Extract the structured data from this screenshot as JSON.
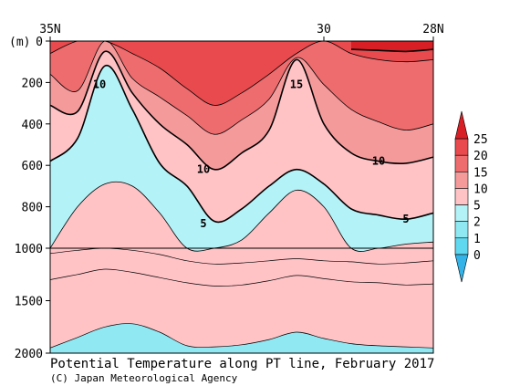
{
  "chart_data": {
    "type": "heatmap",
    "title": "Potential Temperature along PT line, February 2017",
    "credit": "(C) Japan Meteorological Agency",
    "y_unit_label": "(m)",
    "x_tick_labels": [
      "35N",
      "30",
      "28N"
    ],
    "x_range_lat": [
      35,
      28
    ],
    "x_tick_lats": [
      35,
      30,
      28
    ],
    "y_upper_ticks": [
      "0",
      "200",
      "400",
      "600",
      "800",
      "1000"
    ],
    "y_lower_ticks": [
      "1500",
      "2000"
    ],
    "y_upper_range": [
      0,
      1000
    ],
    "y_lower_range": [
      1000,
      2000
    ],
    "colorbar_levels": [
      "0",
      "1",
      "2",
      "5",
      "10",
      "15",
      "20",
      "25"
    ],
    "colorbar_colors": [
      "#33b3e8",
      "#5fd8f0",
      "#8fe8f2",
      "#b3f2f7",
      "#ffc3c6",
      "#f59a9b",
      "#ee6c6e",
      "#e84a4e",
      "#d81f25"
    ],
    "contour_labels": [
      {
        "text": "10",
        "lat": 34.1,
        "depth": 210
      },
      {
        "text": "15",
        "lat": 30.5,
        "depth": 210
      },
      {
        "text": "10",
        "lat": 32.2,
        "depth": 620
      },
      {
        "text": "10",
        "lat": 29.0,
        "depth": 580
      },
      {
        "text": "5",
        "lat": 32.2,
        "depth": 880
      },
      {
        "text": "5",
        "lat": 28.5,
        "depth": 860
      }
    ],
    "isotherm_depths_upper": {
      "lats": [
        35,
        34.5,
        34.0,
        33.5,
        33.0,
        32.5,
        32.0,
        31.5,
        31.0,
        30.5,
        30.0,
        29.5,
        29.0,
        28.5,
        28.0
      ],
      "t25": [
        null,
        null,
        null,
        null,
        null,
        null,
        null,
        null,
        null,
        null,
        null,
        40,
        45,
        50,
        40
      ],
      "t20": [
        60,
        0,
        0,
        60,
        130,
        230,
        310,
        250,
        160,
        60,
        0,
        60,
        90,
        100,
        90
      ],
      "t15": [
        160,
        240,
        0,
        180,
        270,
        360,
        450,
        380,
        280,
        80,
        210,
        330,
        390,
        430,
        400
      ],
      "t10": [
        310,
        340,
        50,
        250,
        400,
        500,
        620,
        540,
        430,
        90,
        400,
        540,
        580,
        590,
        560
      ],
      "t5": [
        580,
        470,
        120,
        330,
        590,
        700,
        870,
        810,
        700,
        620,
        690,
        810,
        840,
        860,
        830
      ],
      "t2": [
        1000,
        800,
        690,
        700,
        830,
        1000,
        1000,
        960,
        830,
        720,
        800,
        1000,
        1000,
        980,
        970
      ]
    },
    "lower_panel_contours": {
      "lats": [
        35,
        34.5,
        34.0,
        33.5,
        33.0,
        32.5,
        32.0,
        31.5,
        31.0,
        30.5,
        30.0,
        29.5,
        29.0,
        28.5,
        28.0
      ],
      "c_a": [
        1050,
        1020,
        1000,
        1020,
        1060,
        1120,
        1150,
        1140,
        1120,
        1100,
        1120,
        1130,
        1150,
        1140,
        1120
      ],
      "c_b": [
        1300,
        1250,
        1200,
        1230,
        1280,
        1330,
        1360,
        1350,
        1310,
        1260,
        1290,
        1320,
        1330,
        1350,
        1340
      ],
      "c_deep": [
        1950,
        1850,
        1750,
        1720,
        1800,
        1930,
        1940,
        1920,
        1870,
        1800,
        1860,
        1910,
        1930,
        1940,
        1950
      ]
    }
  }
}
